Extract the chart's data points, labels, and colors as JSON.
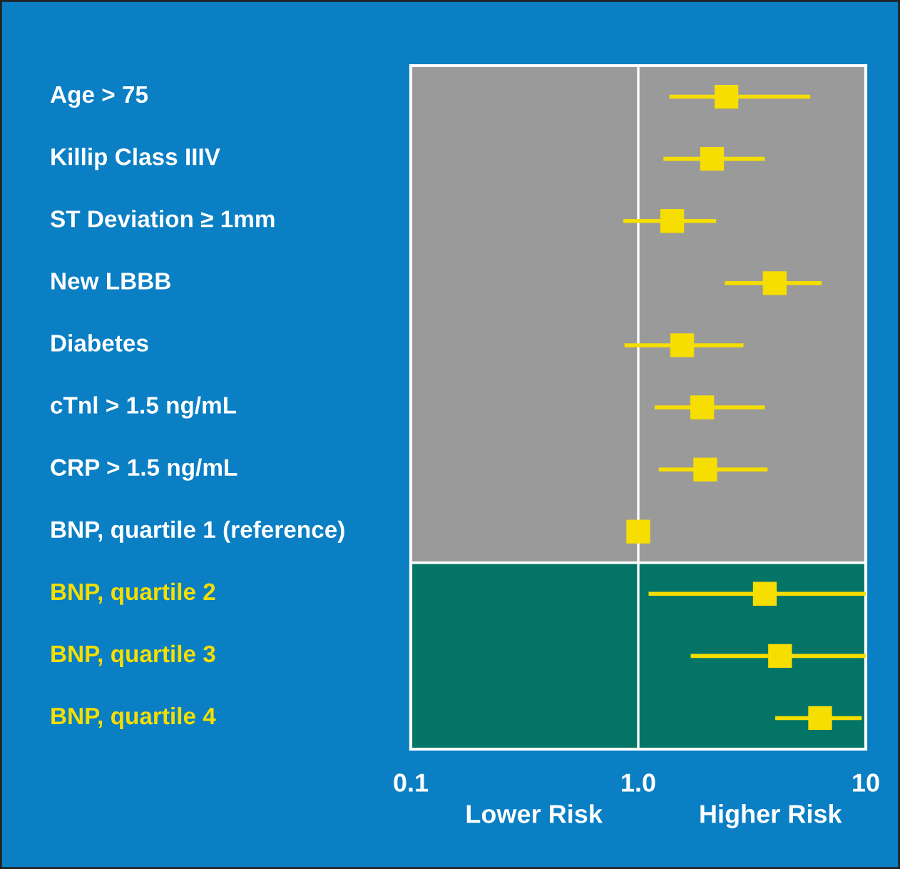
{
  "chart_data": {
    "type": "scatter",
    "orientation": "horizontal",
    "categories": [
      "Age > 75",
      "Killip Class IIIV",
      "ST Deviation ≥ 1mm",
      "New LBBB",
      "Diabetes",
      "cTnl > 1.5 ng/mL",
      "CRP > 1.5 ng/mL",
      "BNP, quartile 1 (reference)",
      "BNP, quartile 2",
      "BNP, quartile 3",
      "BNP, quartile 4"
    ],
    "series": [
      {
        "color": "#f5de00",
        "values": [
          2.44,
          2.11,
          1.41,
          3.98,
          1.56,
          1.91,
          1.97,
          1.0,
          3.6,
          4.2,
          6.3
        ],
        "errors": [
          [
            1.37,
            5.7
          ],
          [
            1.29,
            3.6
          ],
          [
            0.86,
            2.2
          ],
          [
            2.4,
            6.4
          ],
          [
            0.87,
            2.9
          ],
          [
            1.18,
            3.6
          ],
          [
            1.23,
            3.7
          ],
          null,
          [
            1.11,
            10
          ],
          [
            1.7,
            10
          ],
          [
            4.0,
            9.6
          ]
        ]
      }
    ],
    "log": "x",
    "xlim": [
      0.1,
      10
    ],
    "xticks": [
      0.1,
      {
        "value": 1,
        "label": "1.0"
      },
      10
    ],
    "marker": "square",
    "grid": false,
    "legend": false,
    "bands": [
      {
        "axis": "y",
        "from": "Age > 75",
        "to": "BNP, quartile 1 (reference)",
        "color": "#9a9a9a"
      },
      {
        "axis": "y",
        "from": "BNP, quartile 2",
        "to": "BNP, quartile 4",
        "color": "#037466"
      }
    ],
    "ref_lines": [
      {
        "axis": "x",
        "value": 1,
        "color": "#ffffff"
      }
    ],
    "annotations": [
      "Lower Risk",
      "Higher Risk"
    ]
  }
}
